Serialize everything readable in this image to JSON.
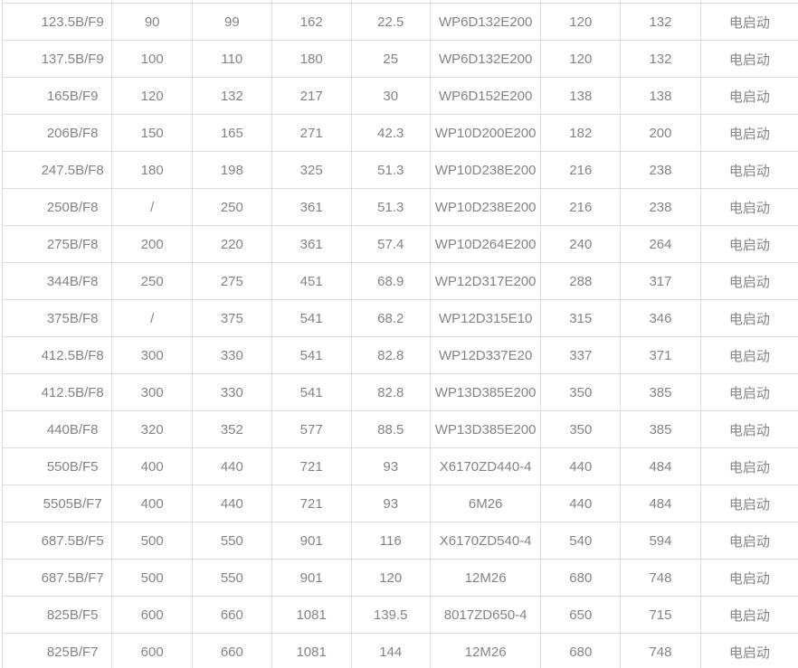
{
  "colors": {
    "background": "#ffffff",
    "text": "#848484",
    "border": "#dcdcdc"
  },
  "table": {
    "rows": [
      [
        "123.5B/F9",
        "90",
        "99",
        "162",
        "22.5",
        "WP6D132E200",
        "120",
        "132",
        "电启动"
      ],
      [
        "137.5B/F9",
        "100",
        "110",
        "180",
        "25",
        "WP6D132E200",
        "120",
        "132",
        "电启动"
      ],
      [
        "165B/F9",
        "120",
        "132",
        "217",
        "30",
        "WP6D152E200",
        "138",
        "138",
        "电启动"
      ],
      [
        "206B/F8",
        "150",
        "165",
        "271",
        "42.3",
        "WP10D200E200",
        "182",
        "200",
        "电启动"
      ],
      [
        "247.5B/F8",
        "180",
        "198",
        "325",
        "51.3",
        "WP10D238E200",
        "216",
        "238",
        "电启动"
      ],
      [
        "250B/F8",
        "/",
        "250",
        "361",
        "51.3",
        "WP10D238E200",
        "216",
        "238",
        "电启动"
      ],
      [
        "275B/F8",
        "200",
        "220",
        "361",
        "57.4",
        "WP10D264E200",
        "240",
        "264",
        "电启动"
      ],
      [
        "344B/F8",
        "250",
        "275",
        "451",
        "68.9",
        "WP12D317E200",
        "288",
        "317",
        "电启动"
      ],
      [
        "375B/F8",
        "/",
        "375",
        "541",
        "68.2",
        "WP12D315E10",
        "315",
        "346",
        "电启动"
      ],
      [
        "412.5B/F8",
        "300",
        "330",
        "541",
        "82.8",
        "WP12D337E20",
        "337",
        "371",
        "电启动"
      ],
      [
        "412.5B/F8",
        "300",
        "330",
        "541",
        "82.8",
        "WP13D385E200",
        "350",
        "385",
        "电启动"
      ],
      [
        "440B/F8",
        "320",
        "352",
        "577",
        "88.5",
        "WP13D385E200",
        "350",
        "385",
        "电启动"
      ],
      [
        "550B/F5",
        "400",
        "440",
        "721",
        "93",
        "X6170ZD440-4",
        "440",
        "484",
        "电启动"
      ],
      [
        "5505B/F7",
        "400",
        "440",
        "721",
        "93",
        "6M26",
        "440",
        "484",
        "电启动"
      ],
      [
        "687.5B/F5",
        "500",
        "550",
        "901",
        "116",
        "X6170ZD540-4",
        "540",
        "594",
        "电启动"
      ],
      [
        "687.5B/F7",
        "500",
        "550",
        "901",
        "120",
        "12M26",
        "680",
        "748",
        "电启动"
      ],
      [
        "825B/F5",
        "600",
        "660",
        "1081",
        "139.5",
        "8017ZD650-4",
        "650",
        "715",
        "电启动"
      ],
      [
        "825B/F7",
        "600",
        "660",
        "1081",
        "144",
        "12M26",
        "680",
        "748",
        "电启动"
      ]
    ]
  }
}
